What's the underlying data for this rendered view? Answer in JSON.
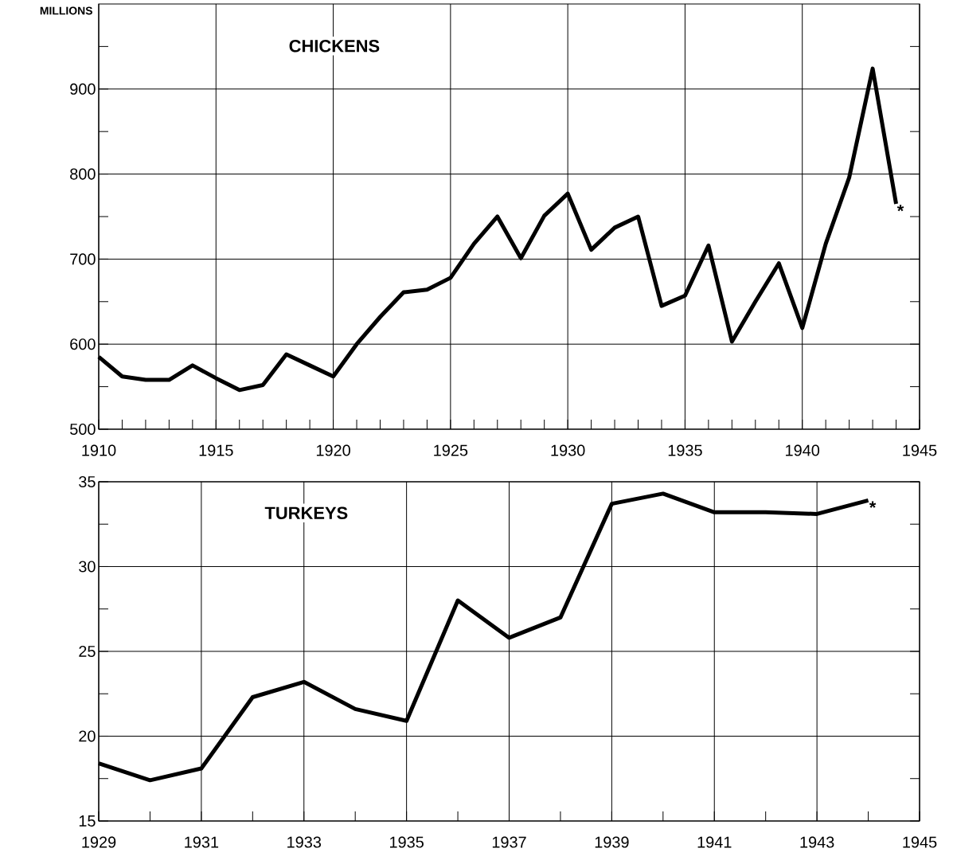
{
  "chart_data": [
    {
      "type": "line",
      "title": "CHICKENS",
      "ylabel": "MILLIONS",
      "x": [
        1910,
        1911,
        1912,
        1913,
        1914,
        1915,
        1916,
        1917,
        1918,
        1919,
        1920,
        1921,
        1922,
        1923,
        1924,
        1925,
        1926,
        1927,
        1928,
        1929,
        1930,
        1931,
        1932,
        1933,
        1934,
        1935,
        1936,
        1937,
        1938,
        1939,
        1940,
        1941,
        1942,
        1943,
        1944
      ],
      "series": [
        {
          "color": "#000000",
          "values": [
            585,
            562,
            558,
            558,
            575,
            560,
            546,
            552,
            588,
            575,
            562,
            600,
            632,
            661,
            664,
            678,
            718,
            750,
            701,
            751,
            777,
            711,
            737,
            750,
            645,
            657,
            716,
            603,
            650,
            695,
            619,
            718,
            796,
            924,
            765
          ]
        }
      ],
      "xlim": [
        1910,
        1945
      ],
      "ylim": [
        500,
        1000
      ],
      "xticks": [
        1910,
        {
          "value": 1911,
          "label": null
        },
        {
          "value": 1912,
          "label": null
        },
        {
          "value": 1913,
          "label": null
        },
        {
          "value": 1914,
          "label": null
        },
        1915,
        {
          "value": 1916,
          "label": null
        },
        {
          "value": 1917,
          "label": null
        },
        {
          "value": 1918,
          "label": null
        },
        {
          "value": 1919,
          "label": null
        },
        1920,
        {
          "value": 1921,
          "label": null
        },
        {
          "value": 1922,
          "label": null
        },
        {
          "value": 1923,
          "label": null
        },
        {
          "value": 1924,
          "label": null
        },
        1925,
        {
          "value": 1926,
          "label": null
        },
        {
          "value": 1927,
          "label": null
        },
        {
          "value": 1928,
          "label": null
        },
        {
          "value": 1929,
          "label": null
        },
        1930,
        {
          "value": 1931,
          "label": null
        },
        {
          "value": 1932,
          "label": null
        },
        {
          "value": 1933,
          "label": null
        },
        {
          "value": 1934,
          "label": null
        },
        1935,
        {
          "value": 1936,
          "label": null
        },
        {
          "value": 1937,
          "label": null
        },
        {
          "value": 1938,
          "label": null
        },
        {
          "value": 1939,
          "label": null
        },
        1940,
        {
          "value": 1941,
          "label": null
        },
        {
          "value": 1942,
          "label": null
        },
        {
          "value": 1943,
          "label": null
        },
        {
          "value": 1944,
          "label": null
        },
        1945
      ],
      "yticks": [
        500,
        {
          "value": 550,
          "label": null
        },
        600,
        {
          "value": 650,
          "label": null
        },
        700,
        {
          "value": 750,
          "label": null
        },
        800,
        {
          "value": 850,
          "label": null
        },
        900,
        {
          "value": 950,
          "label": null
        }
      ],
      "grid": true,
      "annotations": [
        {
          "text": "*",
          "x": 1944,
          "y": 765
        }
      ]
    },
    {
      "type": "line",
      "title": "TURKEYS",
      "x": [
        1929,
        1930,
        1931,
        1932,
        1933,
        1934,
        1935,
        1936,
        1937,
        1938,
        1939,
        1940,
        1941,
        1942,
        1943,
        1944
      ],
      "series": [
        {
          "color": "#000000",
          "values": [
            18.4,
            17.4,
            18.1,
            22.3,
            23.2,
            21.6,
            20.9,
            28.0,
            25.8,
            27.0,
            33.7,
            34.3,
            33.2,
            33.2,
            33.1,
            33.9
          ]
        }
      ],
      "xlim": [
        1929,
        1945
      ],
      "ylim": [
        15,
        35
      ],
      "xticks": [
        1929,
        {
          "value": 1930,
          "label": null
        },
        1931,
        {
          "value": 1932,
          "label": null
        },
        1933,
        {
          "value": 1934,
          "label": null
        },
        1935,
        {
          "value": 1936,
          "label": null
        },
        1937,
        {
          "value": 1938,
          "label": null
        },
        1939,
        {
          "value": 1940,
          "label": null
        },
        1941,
        {
          "value": 1942,
          "label": null
        },
        1943,
        {
          "value": 1944,
          "label": null
        },
        1945
      ],
      "yticks": [
        15,
        {
          "value": 17.5,
          "label": null
        },
        20,
        {
          "value": 22.5,
          "label": null
        },
        25,
        {
          "value": 27.5,
          "label": null
        },
        30,
        {
          "value": 32.5,
          "label": null
        },
        35
      ],
      "grid": true,
      "annotations": [
        {
          "text": "*",
          "x": 1944,
          "y": 33.9
        }
      ]
    }
  ]
}
